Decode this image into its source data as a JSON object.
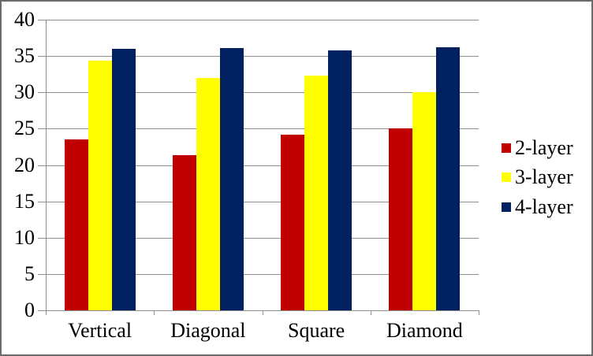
{
  "chart_data": {
    "type": "bar",
    "title": "",
    "xlabel": "",
    "ylabel": "",
    "categories": [
      "Vertical",
      "Diagonal",
      "Square",
      "Diamond"
    ],
    "series": [
      {
        "name": "2-layer",
        "color": "#C00000",
        "values": [
          23.5,
          21.4,
          24.2,
          25.0
        ]
      },
      {
        "name": "3-layer",
        "color": "#FFFF00",
        "values": [
          34.4,
          32.0,
          32.3,
          30.0
        ]
      },
      {
        "name": "4-layer",
        "color": "#002060",
        "values": [
          36.0,
          36.1,
          35.8,
          36.2
        ]
      }
    ],
    "ylim": [
      0,
      40
    ],
    "ytick_step": 5,
    "ytick_labels": [
      "0",
      "5",
      "10",
      "15",
      "20",
      "25",
      "30",
      "35",
      "40"
    ],
    "grid": true,
    "legend_position": "right",
    "legend_entries": [
      "2-layer",
      "3-layer",
      "4-layer"
    ]
  },
  "style_colors": {
    "gridline": "#909090",
    "axis": "#909090",
    "text": "#000000",
    "frame_border": "#6B6B6B",
    "background": "#FFFFFF"
  }
}
